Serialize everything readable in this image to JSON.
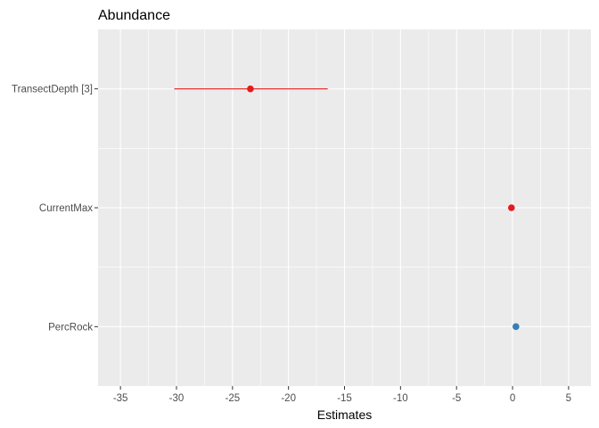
{
  "chart_data": {
    "type": "scatter",
    "title": "Abundance",
    "xlabel": "Estimates",
    "ylabel": "",
    "xlim": [
      -37,
      7
    ],
    "xticks": [
      -35,
      -30,
      -25,
      -20,
      -15,
      -10,
      -5,
      0,
      5
    ],
    "xtick_labels": [
      "-35",
      "-30",
      "-25",
      "-20",
      "-15",
      "-10",
      "-5",
      "0",
      "5"
    ],
    "grid": true,
    "categories": [
      "TransectDepth [3]",
      "CurrentMax",
      "PercRock"
    ],
    "series": [
      {
        "values": [
          {
            "term": "TransectDepth [3]",
            "estimate": -23.4,
            "conf_low": -30.2,
            "conf_high": -16.5,
            "color": "#e41a1c"
          },
          {
            "term": "CurrentMax",
            "estimate": -0.1,
            "conf_low": -0.3,
            "conf_high": 0.1,
            "color": "#e41a1c"
          },
          {
            "term": "PercRock",
            "estimate": 0.3,
            "conf_low": 0.15,
            "conf_high": 0.45,
            "color": "#377eb8"
          }
        ]
      }
    ],
    "colors": {
      "negative": "#e41a1c",
      "positive": "#377eb8",
      "panel_background": "#ebebeb",
      "grid": "#ffffff"
    }
  }
}
